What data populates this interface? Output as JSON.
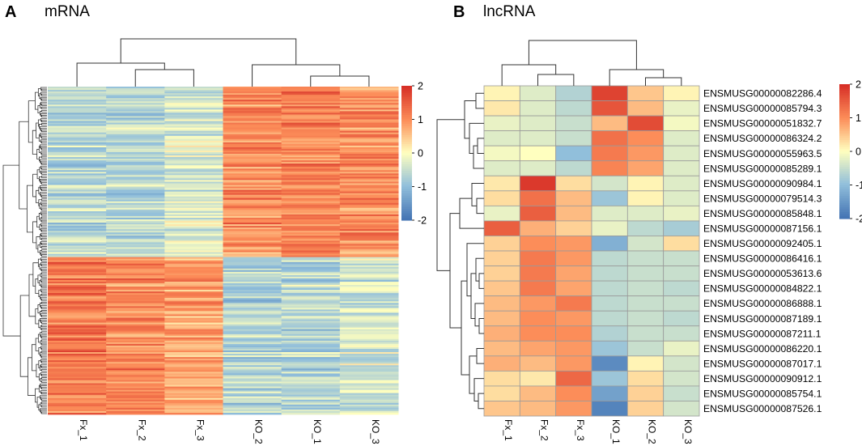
{
  "chart_data": [
    {
      "type": "heatmap",
      "panel_label": "A",
      "title": "mRNA",
      "columns": [
        "Fx_1",
        "Fx_2",
        "Fx_3",
        "KO_2",
        "KO_1",
        "KO_3"
      ],
      "column_cluster_order": [
        "Fx_1",
        "Fx_2",
        "Fx_3",
        "KO_2",
        "KO_1",
        "KO_3"
      ],
      "row_groups": [
        {
          "name": "upregulated in KO",
          "row_share": 0.52,
          "approx_values": [
            -0.6,
            -0.6,
            -0.3,
            1.0,
            1.1,
            1.0
          ]
        },
        {
          "name": "downregulated in KO",
          "row_share": 0.48,
          "approx_values": [
            1.2,
            1.1,
            0.8,
            -0.7,
            -0.6,
            -0.4
          ]
        }
      ],
      "legend": {
        "min": -2,
        "max": 2,
        "ticks": [
          "2",
          "1",
          "0",
          "-1",
          "-2"
        ]
      }
    },
    {
      "type": "heatmap",
      "panel_label": "B",
      "title": "lncRNA",
      "columns": [
        "Fx_1",
        "Fx_2",
        "Fx_3",
        "KO_1",
        "KO_2",
        "KO_3"
      ],
      "rows": [
        "ENSMUSG00000082286.4",
        "ENSMUSG00000085794.3",
        "ENSMUSG00000051832.7",
        "ENSMUSG00000086324.2",
        "ENSMUSG00000055963.5",
        "ENSMUSG00000085289.1",
        "ENSMUSG00000090984.1",
        "ENSMUSG00000079514.3",
        "ENSMUSG00000085848.1",
        "ENSMUSG00000087156.1",
        "ENSMUSG00000092405.1",
        "ENSMUSG00000086416.1",
        "ENSMUSG00000053613.6",
        "ENSMUSG00000084822.1",
        "ENSMUSG00000086888.1",
        "ENSMUSG00000087189.1",
        "ENSMUSG00000087211.1",
        "ENSMUSG00000086220.1",
        "ENSMUSG00000087017.1",
        "ENSMUSG00000090912.1",
        "ENSMUSG00000085754.1",
        "ENSMUSG00000087526.1"
      ],
      "values": [
        [
          0.1,
          -0.3,
          -0.7,
          1.8,
          0.5,
          0.1
        ],
        [
          0.2,
          -0.3,
          -0.6,
          1.6,
          0.6,
          -0.2
        ],
        [
          -0.2,
          -0.3,
          -0.5,
          0.6,
          1.7,
          -0.1
        ],
        [
          -0.3,
          -0.3,
          -0.5,
          1.3,
          1.0,
          -0.3
        ],
        [
          -0.1,
          0.0,
          -1.0,
          1.2,
          0.9,
          -0.3
        ],
        [
          -0.3,
          -0.3,
          -0.6,
          1.1,
          0.8,
          -0.3
        ],
        [
          0.2,
          1.9,
          0.3,
          -0.4,
          0.1,
          -0.3
        ],
        [
          0.3,
          1.3,
          0.6,
          -0.9,
          0.1,
          -0.3
        ],
        [
          -0.2,
          1.5,
          0.6,
          -0.3,
          -0.3,
          -0.2
        ],
        [
          1.5,
          0.7,
          0.4,
          -0.2,
          -0.6,
          -0.8
        ],
        [
          0.4,
          1.0,
          0.9,
          -1.2,
          -0.4,
          0.3
        ],
        [
          0.4,
          1.2,
          0.9,
          -0.6,
          -0.5,
          -0.5
        ],
        [
          0.4,
          1.2,
          0.8,
          -0.6,
          -0.5,
          -0.5
        ],
        [
          0.5,
          1.2,
          0.8,
          -0.6,
          -0.5,
          -0.6
        ],
        [
          0.6,
          0.9,
          1.2,
          -0.6,
          -0.5,
          -0.5
        ],
        [
          0.6,
          1.0,
          0.9,
          -0.6,
          -0.5,
          -0.6
        ],
        [
          0.7,
          1.0,
          1.0,
          -0.7,
          -0.5,
          -0.5
        ],
        [
          0.6,
          0.8,
          0.9,
          -0.9,
          -0.5,
          -0.2
        ],
        [
          0.7,
          0.6,
          0.9,
          -1.7,
          0.1,
          -0.4
        ],
        [
          0.3,
          0.2,
          1.4,
          -0.9,
          0.3,
          -0.4
        ],
        [
          0.3,
          0.6,
          1.0,
          -1.4,
          0.4,
          -0.5
        ],
        [
          0.5,
          0.6,
          0.9,
          -1.8,
          0.4,
          -0.4
        ]
      ],
      "legend": {
        "min": -2,
        "max": 2,
        "ticks": [
          "2",
          "1",
          "0",
          "-1",
          "-2"
        ]
      }
    }
  ]
}
